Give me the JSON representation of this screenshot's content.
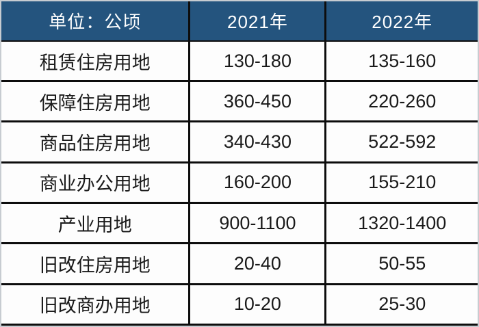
{
  "chart_data": {
    "type": "table",
    "title": "",
    "unit_note": "单位：公顷",
    "columns": [
      "单位：公顷",
      "2021年",
      "2022年"
    ],
    "rows": [
      [
        "租赁住房用地",
        "130-180",
        "135-160"
      ],
      [
        "保障住房用地",
        "360-450",
        "220-260"
      ],
      [
        "商品住房用地",
        "340-430",
        "522-592"
      ],
      [
        "商业办公用地",
        "160-200",
        "155-210"
      ],
      [
        "产业用地",
        "900-1100",
        "1320-1400"
      ],
      [
        "旧改住房用地",
        "20-40",
        "50-55"
      ],
      [
        "旧改商办用地",
        "10-20",
        "25-30"
      ]
    ]
  },
  "colors": {
    "header_bg": "#24547E",
    "header_text": "#FFFFFF",
    "body_text": "#1A1A1A",
    "grid_line": "#0D0D0D",
    "outer_frame": "#C7CCD1",
    "cell_bg": "#FDFDFD"
  }
}
